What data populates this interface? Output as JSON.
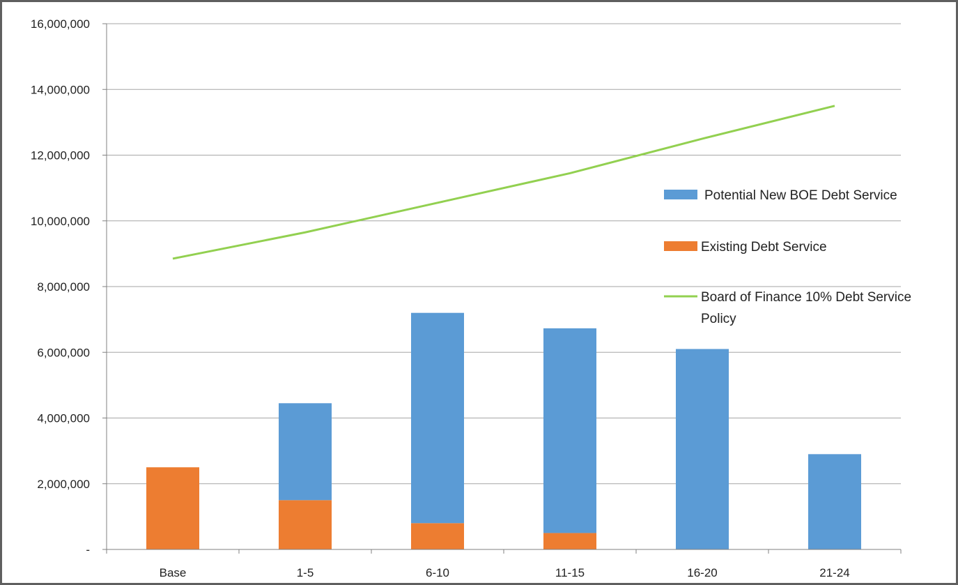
{
  "chart_data": {
    "type": "bar",
    "stacked": true,
    "categories": [
      "Base",
      "1-5",
      "6-10",
      "11-15",
      "16-20",
      "21-24"
    ],
    "ylim": [
      0,
      16000000
    ],
    "ytick_values": [
      0,
      2000000,
      4000000,
      6000000,
      8000000,
      10000000,
      12000000,
      14000000,
      16000000
    ],
    "ytick_labels": [
      "-",
      "2,000,000",
      "4,000,000",
      "6,000,000",
      "8,000,000",
      "10,000,000",
      "12,000,000",
      "14,000,000",
      "16,000,000"
    ],
    "grid": true,
    "legend_position": "right",
    "series": [
      {
        "name": "Existing Debt Service",
        "kind": "bar",
        "color": "#ed7d31",
        "values": [
          2500000,
          1500000,
          800000,
          500000,
          0,
          0
        ]
      },
      {
        "name": "Potential New BOE Debt Service",
        "kind": "bar",
        "color": "#5b9bd5",
        "values": [
          0,
          2950000,
          6400000,
          6230000,
          6100000,
          2900000
        ]
      },
      {
        "name": "Board of Finance 10% Debt Service Policy",
        "kind": "line",
        "color": "#92d050",
        "values": [
          8850000,
          9650000,
          10550000,
          11450000,
          12500000,
          13500000
        ]
      }
    ],
    "legend": [
      {
        "series": 1,
        "lines": [
          "Potential New BOE Debt Service"
        ]
      },
      {
        "series": 0,
        "lines": [
          "Existing Debt Service"
        ]
      },
      {
        "series": 2,
        "lines": [
          "Board of Finance 10% Debt Service",
          "Policy"
        ]
      }
    ]
  }
}
